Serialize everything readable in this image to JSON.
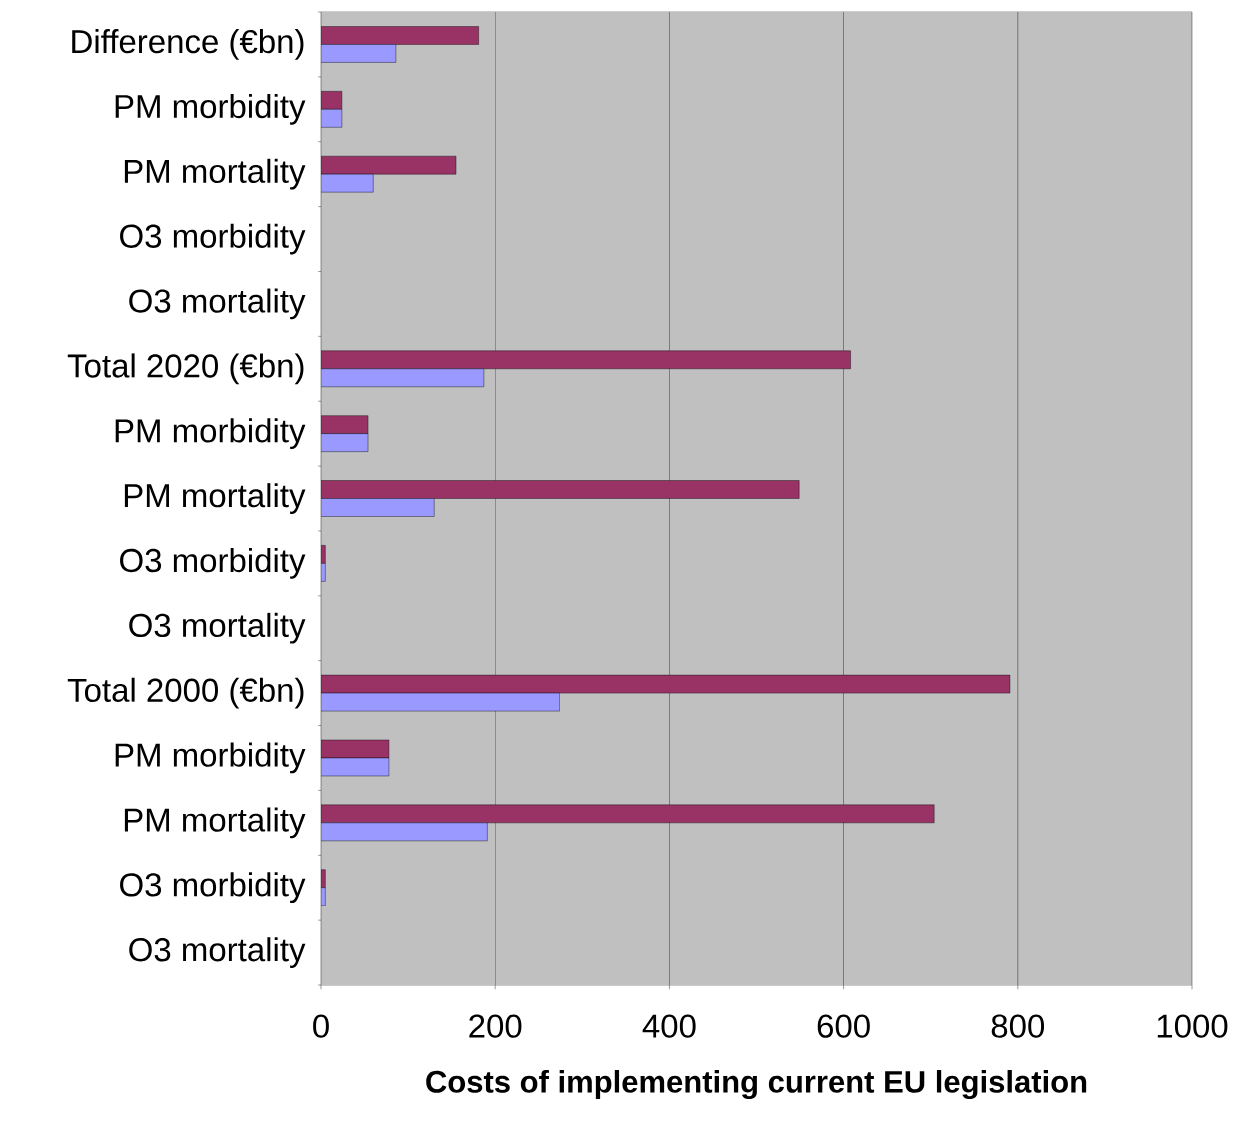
{
  "chart_data": {
    "type": "bar",
    "orientation": "horizontal",
    "xlabel": "Costs of implementing current EU legislation",
    "categories": [
      "Difference (€bn)",
      "PM morbidity",
      "PM mortality",
      "O3 morbidity",
      "O3 mortality",
      "Total  2020 (€bn)",
      "PM morbidity",
      "PM mortality",
      "O3 morbidity",
      "O3 mortality",
      "Total  2000 (€bn)",
      "PM morbidity",
      "PM mortality",
      "O3 morbidity",
      "O3 mortality"
    ],
    "series": [
      {
        "color": "#993366",
        "values": [
          181,
          24,
          155,
          null,
          null,
          608,
          54,
          549,
          5,
          null,
          791,
          78,
          704,
          5,
          null
        ]
      },
      {
        "color": "#9999ff",
        "values": [
          86,
          24,
          60,
          null,
          null,
          187,
          54,
          130,
          5,
          null,
          274,
          78,
          191,
          5,
          null
        ]
      }
    ],
    "xlim": [
      0,
      1000
    ],
    "xticks": [
      0,
      200,
      400,
      600,
      800,
      1000
    ],
    "grid": "x"
  }
}
